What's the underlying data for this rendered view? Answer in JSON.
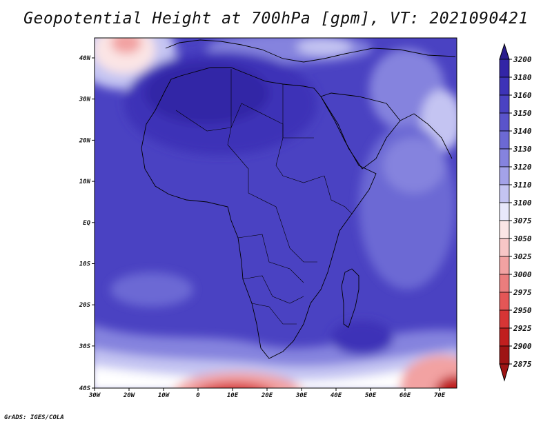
{
  "title": "Geopotential Height at 700hPa [gpm], VT: 2021090421",
  "credit": "GrADS: IGES/COLA",
  "map": {
    "lat_ticks": [
      "40N",
      "30N",
      "20N",
      "10N",
      "EQ",
      "10S",
      "20S",
      "30S",
      "40S"
    ],
    "lon_ticks": [
      "30W",
      "20W",
      "10W",
      "0",
      "10E",
      "20E",
      "30E",
      "40E",
      "50E",
      "60E",
      "70E"
    ]
  },
  "colorbar": {
    "levels": [
      "3200",
      "3180",
      "3160",
      "3150",
      "3140",
      "3130",
      "3120",
      "3110",
      "3100",
      "3075",
      "3050",
      "3025",
      "3000",
      "2975",
      "2950",
      "2925",
      "2900",
      "2875"
    ],
    "colors": [
      "#2a1d8e",
      "#3325a6",
      "#3d33b7",
      "#4a42c2",
      "#5a54cb",
      "#6c69d4",
      "#8583de",
      "#a3a2e8",
      "#c4c4f2",
      "#e8e8fb",
      "#fbe5e5",
      "#f7c6c6",
      "#f2a2a2",
      "#eb7d7d",
      "#e45656",
      "#d73535",
      "#c01f1f",
      "#9e1414"
    ]
  }
}
